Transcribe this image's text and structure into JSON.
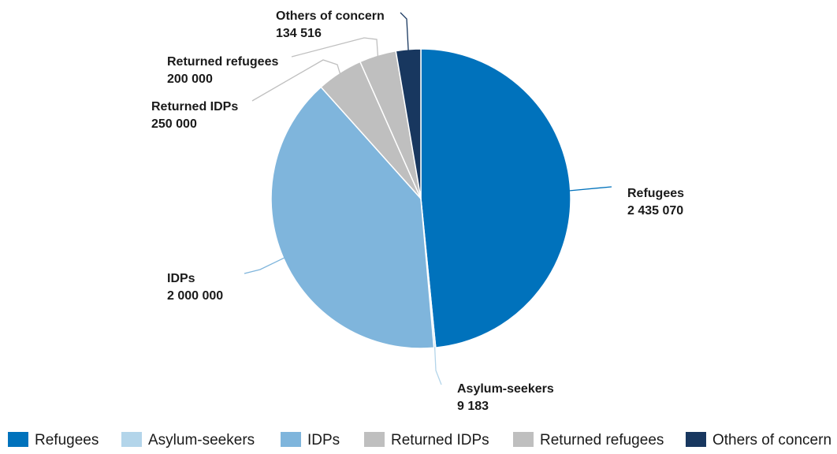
{
  "chart_data": {
    "type": "pie",
    "title": "",
    "slices": [
      {
        "label": "Refugees",
        "value": 2435070,
        "display_value": "2 435 070",
        "color": "#0072BC",
        "label_side": "right"
      },
      {
        "label": "Asylum-seekers",
        "value": 9183,
        "display_value": "9 183",
        "color": "#B3D5EA",
        "label_side": "right"
      },
      {
        "label": "IDPs",
        "value": 2000000,
        "display_value": "2 000 000",
        "color": "#7FB5DC",
        "label_side": "left"
      },
      {
        "label": "Returned IDPs",
        "value": 250000,
        "display_value": "250 000",
        "color": "#BFBFBF",
        "label_side": "left"
      },
      {
        "label": "Returned refugees",
        "value": 200000,
        "display_value": "200 000",
        "color": "#BFBFBF",
        "label_side": "left"
      },
      {
        "label": "Others of concern",
        "value": 134516,
        "display_value": "134 516",
        "color": "#18375F",
        "label_side": "left"
      }
    ],
    "start_angle": "12 o'clock",
    "direction": "clockwise",
    "legend": {
      "position": "bottom",
      "items": [
        {
          "label": "Refugees",
          "color": "#0072BC"
        },
        {
          "label": "Asylum-seekers",
          "color": "#B3D5EA"
        },
        {
          "label": "IDPs",
          "color": "#7FB5DC"
        },
        {
          "label": "Returned IDPs",
          "color": "#BFBFBF"
        },
        {
          "label": "Returned refugees",
          "color": "#BFBFBF"
        },
        {
          "label": "Others of concern",
          "color": "#18375F"
        }
      ]
    }
  }
}
